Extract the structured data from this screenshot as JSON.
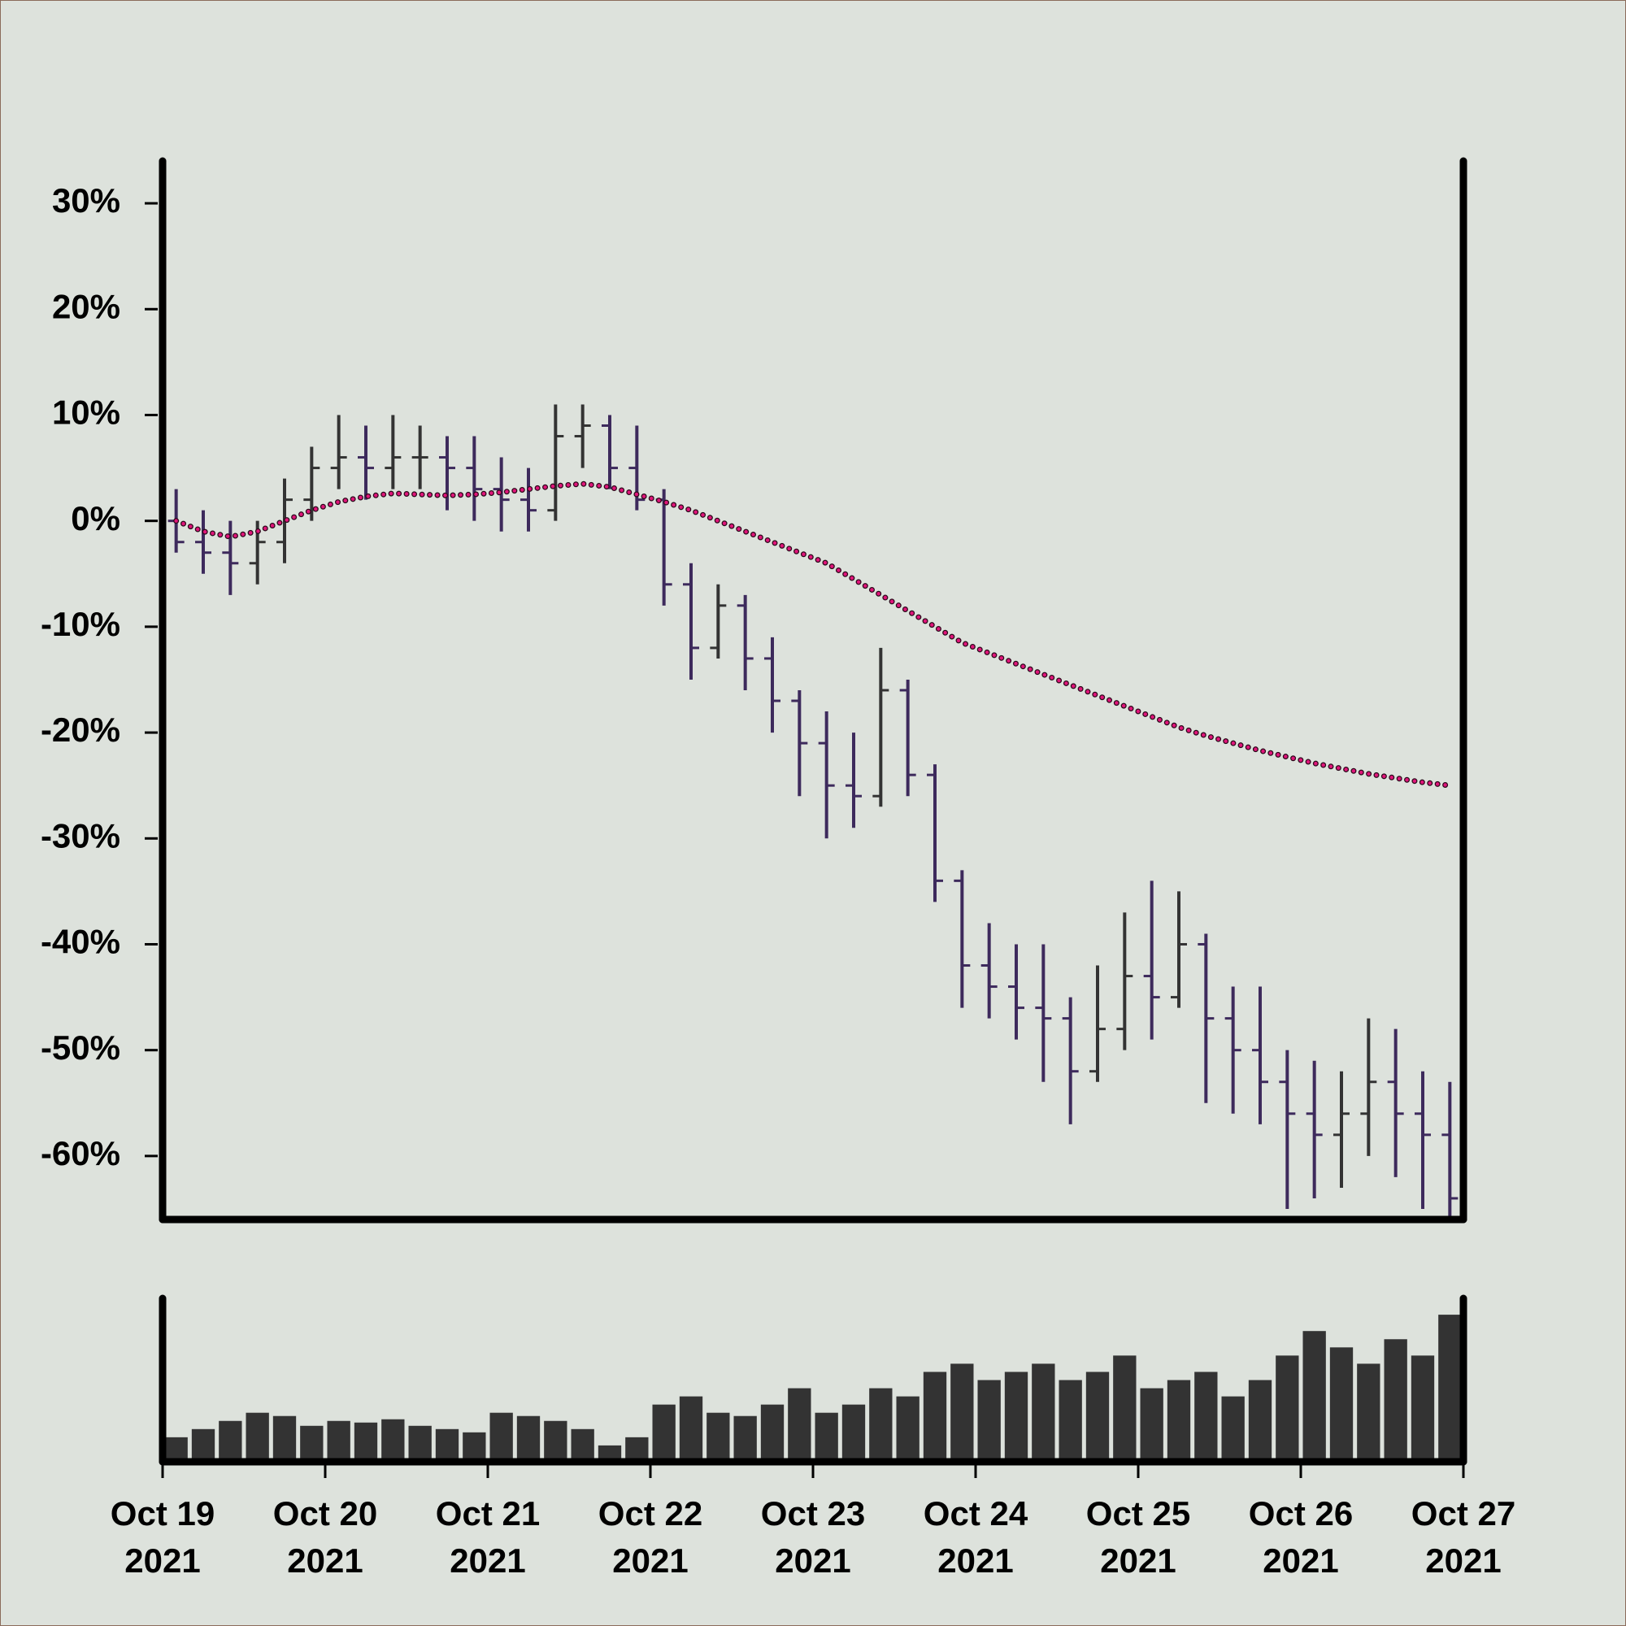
{
  "chart_data": [
    {
      "type": "ohlc",
      "x": [
        2,
        6,
        10,
        14,
        18,
        22,
        26,
        30,
        34,
        38,
        42,
        46,
        50,
        54,
        58,
        62,
        66,
        70,
        74,
        78,
        82,
        86,
        90,
        94,
        98,
        102,
        106,
        110,
        114,
        118,
        122,
        126,
        130,
        134,
        138,
        142,
        146,
        150,
        154,
        158,
        162,
        166,
        170,
        174,
        178,
        182,
        186,
        190
      ],
      "open": [
        0,
        -2,
        -3,
        -4,
        -2,
        2,
        5,
        6,
        5,
        6,
        6,
        5,
        3,
        2,
        1,
        8,
        9,
        5,
        2,
        -6,
        -12,
        -8,
        -13,
        -17,
        -21,
        -25,
        -26,
        -16,
        -24,
        -34,
        -42,
        -44,
        -46,
        -47,
        -52,
        -48,
        -43,
        -45,
        -40,
        -47,
        -50,
        -53,
        -56,
        -58,
        -56,
        -53,
        -56,
        -58
      ],
      "high": [
        3,
        1,
        0,
        0,
        4,
        7,
        10,
        9,
        10,
        9,
        8,
        8,
        6,
        5,
        11,
        11,
        10,
        9,
        3,
        -4,
        -6,
        -7,
        -11,
        -16,
        -18,
        -20,
        -12,
        -15,
        -23,
        -33,
        -38,
        -40,
        -40,
        -45,
        -42,
        -37,
        -34,
        -35,
        -39,
        -44,
        -44,
        -50,
        -51,
        -52,
        -47,
        -48,
        -52,
        -53
      ],
      "low": [
        -3,
        -5,
        -7,
        -6,
        -4,
        0,
        3,
        2,
        3,
        3,
        1,
        0,
        -1,
        -1,
        0,
        5,
        3,
        1,
        -8,
        -15,
        -13,
        -16,
        -20,
        -26,
        -30,
        -29,
        -27,
        -26,
        -36,
        -46,
        -47,
        -49,
        -53,
        -57,
        -53,
        -50,
        -49,
        -46,
        -55,
        -56,
        -57,
        -65,
        -64,
        -63,
        -60,
        -62,
        -65,
        -66
      ],
      "close": [
        -2,
        -3,
        -4,
        -2,
        2,
        5,
        6,
        5,
        6,
        6,
        5,
        3,
        2,
        1,
        8,
        9,
        5,
        2,
        -6,
        -12,
        -8,
        -13,
        -17,
        -21,
        -25,
        -26,
        -16,
        -24,
        -34,
        -42,
        -44,
        -46,
        -47,
        -52,
        -48,
        -43,
        -45,
        -40,
        -47,
        -50,
        -53,
        -56,
        -58,
        -56,
        -53,
        -56,
        -58,
        -64
      ],
      "up_color": "#333333",
      "down_color": "#3d2a5c",
      "moving_average": {
        "color": "#e0157a",
        "values": [
          0,
          -1,
          -1.5,
          -1,
          0,
          1,
          1.8,
          2.3,
          2.6,
          2.5,
          2.4,
          2.5,
          2.7,
          3,
          3.3,
          3.5,
          3.2,
          2.5,
          1.8,
          1,
          0,
          -1,
          -2,
          -3,
          -4,
          -5.5,
          -7,
          -8.5,
          -10,
          -11.5,
          -12.5,
          -13.5,
          -14.5,
          -15.5,
          -16.5,
          -17.5,
          -18.5,
          -19.5,
          -20.3,
          -21,
          -21.7,
          -22.3,
          -22.9,
          -23.4,
          -23.9,
          -24.3,
          -24.7,
          -25
        ]
      },
      "xlim": [
        0,
        192
      ],
      "ylim": [
        -66,
        34
      ],
      "yticks": [
        {
          "value": 30,
          "label": "30%"
        },
        {
          "value": 20,
          "label": "20%"
        },
        {
          "value": 10,
          "label": "10%"
        },
        {
          "value": 0,
          "label": "0%"
        },
        {
          "value": -10,
          "label": "-10%"
        },
        {
          "value": -20,
          "label": "-20%"
        },
        {
          "value": -30,
          "label": "-30%"
        },
        {
          "value": -40,
          "label": "-40%"
        },
        {
          "value": -50,
          "label": "-50%"
        },
        {
          "value": -60,
          "label": "-60%"
        }
      ]
    },
    {
      "type": "bar",
      "x": [
        2,
        6,
        10,
        14,
        18,
        22,
        26,
        30,
        34,
        38,
        42,
        46,
        50,
        54,
        58,
        62,
        66,
        70,
        74,
        78,
        82,
        86,
        90,
        94,
        98,
        102,
        106,
        110,
        114,
        118,
        122,
        126,
        130,
        134,
        138,
        142,
        146,
        150,
        154,
        158,
        162,
        166,
        170,
        174,
        178,
        182,
        186,
        190
      ],
      "values": [
        15,
        20,
        25,
        30,
        28,
        22,
        25,
        24,
        26,
        22,
        20,
        18,
        30,
        28,
        25,
        20,
        10,
        15,
        35,
        40,
        30,
        28,
        35,
        45,
        30,
        35,
        45,
        40,
        55,
        60,
        50,
        55,
        60,
        50,
        55,
        65,
        45,
        50,
        55,
        40,
        50,
        65,
        80,
        70,
        60,
        75,
        65,
        90
      ],
      "color": "#333333",
      "xlim": [
        0,
        192
      ],
      "ylim": [
        0,
        100
      ],
      "xticks": [
        {
          "value": 0,
          "label": "Oct 19\n2021"
        },
        {
          "value": 24,
          "label": "Oct 20\n2021"
        },
        {
          "value": 48,
          "label": "Oct 21\n2021"
        },
        {
          "value": 72,
          "label": "Oct 22\n2021"
        },
        {
          "value": 96,
          "label": "Oct 23\n2021"
        },
        {
          "value": 120,
          "label": "Oct 24\n2021"
        },
        {
          "value": 144,
          "label": "Oct 25\n2021"
        },
        {
          "value": 168,
          "label": "Oct 26\n2021"
        },
        {
          "value": 192,
          "label": "Oct 27\n2021"
        }
      ]
    }
  ]
}
